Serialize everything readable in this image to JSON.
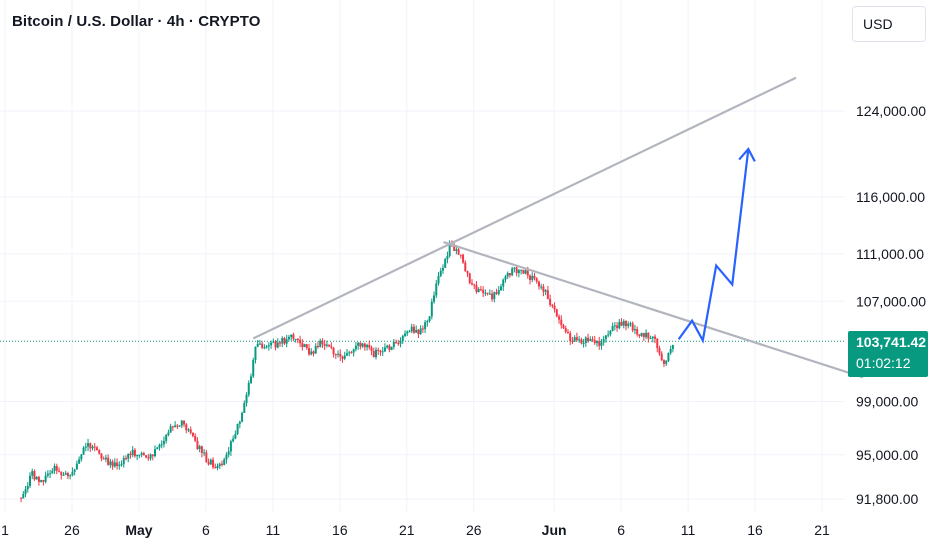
{
  "header": {
    "title": "Bitcoin / U.S. Dollar · 4h · CRYPTO",
    "currency_label": "USD"
  },
  "last_price": {
    "value": 103741.42,
    "label": "103,741.42",
    "countdown": "01:02:12"
  },
  "colors": {
    "up": "#089981",
    "down": "#f23645",
    "trendline": "#b2b5be",
    "projection": "#2962ff",
    "grid": "#f0f3fa",
    "price_line": "#089981"
  },
  "chart_data": {
    "type": "candlestick",
    "symbol": "Bitcoin / U.S. Dollar",
    "interval": "4h",
    "x_ticks": [
      {
        "day": 21,
        "label": "1",
        "bold": false
      },
      {
        "day": 26,
        "label": "26",
        "bold": false
      },
      {
        "day": 31,
        "label": "May",
        "bold": true
      },
      {
        "day": 36,
        "label": "6",
        "bold": false
      },
      {
        "day": 41,
        "label": "11",
        "bold": false
      },
      {
        "day": 46,
        "label": "16",
        "bold": false
      },
      {
        "day": 51,
        "label": "21",
        "bold": false
      },
      {
        "day": 56,
        "label": "26",
        "bold": false
      },
      {
        "day": 62,
        "label": "Jun",
        "bold": true
      },
      {
        "day": 67,
        "label": "6",
        "bold": false
      },
      {
        "day": 72,
        "label": "11",
        "bold": false
      },
      {
        "day": 77,
        "label": "16",
        "bold": false
      },
      {
        "day": 82,
        "label": "21",
        "bold": false
      }
    ],
    "y_ticks": [
      {
        "value": 91800,
        "label": "91,800.00"
      },
      {
        "value": 95000,
        "label": "95,000.00"
      },
      {
        "value": 99000,
        "label": "99,000.00"
      },
      {
        "value": 107000,
        "label": "107,000.00"
      },
      {
        "value": 111000,
        "label": "111,000.00"
      },
      {
        "value": 116000,
        "label": "116,000.00"
      },
      {
        "value": 124000,
        "label": "124,000.00"
      }
    ],
    "x_range_days": [
      20.9,
      86.0
    ],
    "y_scale": "log",
    "y_range": [
      90500,
      132000
    ],
    "close_path": [
      [
        22.2,
        91900
      ],
      [
        23.0,
        93600
      ],
      [
        23.8,
        92800
      ],
      [
        24.6,
        94200
      ],
      [
        25.4,
        93300
      ],
      [
        26.2,
        94000
      ],
      [
        27.0,
        95700
      ],
      [
        27.8,
        95300
      ],
      [
        28.6,
        94600
      ],
      [
        29.4,
        94100
      ],
      [
        30.2,
        95200
      ],
      [
        31.0,
        95000
      ],
      [
        31.8,
        94700
      ],
      [
        32.6,
        95900
      ],
      [
        33.4,
        97100
      ],
      [
        34.2,
        97300
      ],
      [
        35.0,
        96200
      ],
      [
        35.8,
        95000
      ],
      [
        36.6,
        94100
      ],
      [
        37.4,
        94600
      ],
      [
        38.2,
        96700
      ],
      [
        39.0,
        99100
      ],
      [
        39.8,
        103600
      ],
      [
        40.6,
        103400
      ],
      [
        41.4,
        103500
      ],
      [
        42.2,
        104100
      ],
      [
        43.0,
        103900
      ],
      [
        43.8,
        102500
      ],
      [
        44.6,
        103800
      ],
      [
        45.4,
        102900
      ],
      [
        46.2,
        102100
      ],
      [
        47.0,
        103200
      ],
      [
        47.8,
        103600
      ],
      [
        48.6,
        102700
      ],
      [
        49.4,
        103100
      ],
      [
        50.2,
        103500
      ],
      [
        51.0,
        104800
      ],
      [
        51.8,
        104400
      ],
      [
        52.6,
        105500
      ],
      [
        53.4,
        109100
      ],
      [
        54.2,
        111600
      ],
      [
        55.0,
        110900
      ],
      [
        55.8,
        108400
      ],
      [
        56.6,
        107800
      ],
      [
        57.4,
        107200
      ],
      [
        58.2,
        108800
      ],
      [
        59.0,
        109600
      ],
      [
        59.8,
        109300
      ],
      [
        60.6,
        108900
      ],
      [
        61.4,
        107700
      ],
      [
        62.2,
        105600
      ],
      [
        63.0,
        104200
      ],
      [
        63.8,
        103600
      ],
      [
        64.6,
        104100
      ],
      [
        65.4,
        103500
      ],
      [
        66.2,
        104600
      ],
      [
        67.0,
        105200
      ],
      [
        67.8,
        104900
      ],
      [
        68.6,
        104300
      ],
      [
        69.4,
        104000
      ],
      [
        70.2,
        101900
      ],
      [
        71.0,
        103741.42
      ]
    ],
    "trendlines": [
      {
        "name": "upper",
        "from": [
          39.6,
          104000
        ],
        "to": [
          80.0,
          127200
        ]
      },
      {
        "name": "lower",
        "from": [
          53.8,
          112000
        ],
        "to": [
          85.0,
          100900
        ]
      }
    ],
    "projection_path": [
      [
        71.3,
        103900
      ],
      [
        72.3,
        105400
      ],
      [
        73.1,
        103800
      ],
      [
        74.1,
        110000
      ],
      [
        75.3,
        108400
      ],
      [
        76.5,
        120400
      ]
    ]
  }
}
